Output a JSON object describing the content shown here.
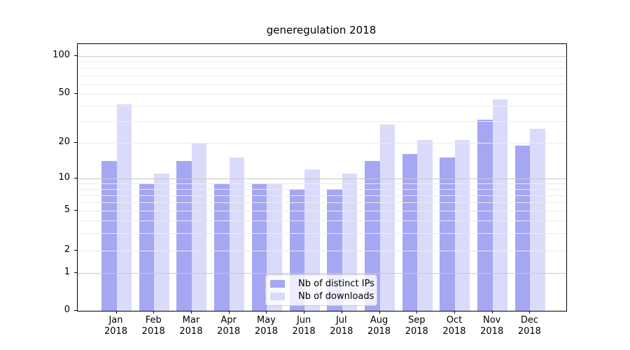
{
  "chart_data": {
    "type": "bar",
    "title": "generegulation 2018",
    "categories": [
      "Jan",
      "Feb",
      "Mar",
      "Apr",
      "May",
      "Jun",
      "Jul",
      "Aug",
      "Sep",
      "Oct",
      "Nov",
      "Dec"
    ],
    "x_year_label": "2018",
    "series": [
      {
        "name": "Nb of distinct IPs",
        "color": "#a5a7f3",
        "values": [
          14,
          9,
          14,
          9,
          9,
          8,
          8,
          14,
          16,
          15,
          31,
          19
        ]
      },
      {
        "name": "Nb of downloads",
        "color": "#dadbfb",
        "values": [
          41,
          11,
          20,
          15,
          9,
          12,
          11,
          28,
          21,
          21,
          45,
          26
        ]
      }
    ],
    "xlabel": "",
    "ylabel": "",
    "y_scale": "log-like with linear segment to 0",
    "y_ticks": [
      0,
      1,
      2,
      5,
      10,
      20,
      50,
      100
    ],
    "major_gridlines": [
      1,
      10,
      100
    ],
    "minor_gridlines": [
      2,
      3,
      4,
      5,
      6,
      7,
      8,
      9,
      20,
      30,
      40,
      50,
      60,
      70,
      80,
      90
    ],
    "ylim": [
      0,
      135
    ],
    "grid": true,
    "legend_position": "lower center",
    "y_axis_anchors": [
      [
        0,
        381
      ],
      [
        1,
        327
      ],
      [
        2,
        295
      ],
      [
        5,
        238
      ],
      [
        10,
        192
      ],
      [
        20,
        141
      ],
      [
        50,
        71
      ],
      [
        100,
        17
      ]
    ]
  },
  "colors": {
    "background": "#ffffff",
    "spine": "#000000",
    "major_grid": "#c9c9c9",
    "minor_grid": "#ebebeb",
    "text": "#000000"
  }
}
